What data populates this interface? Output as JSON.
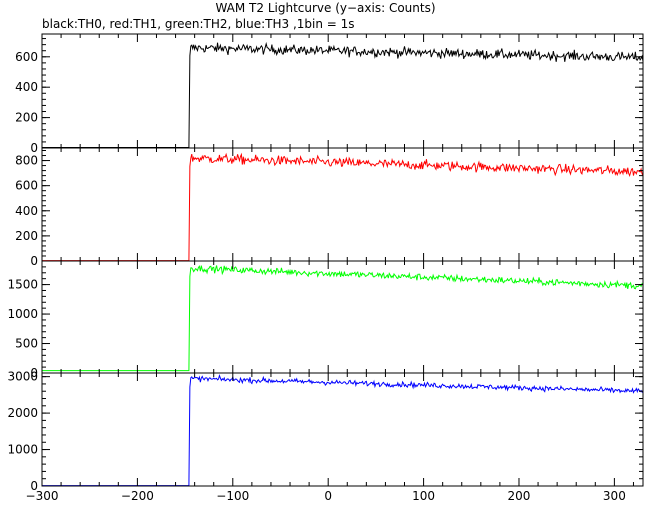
{
  "chart_data": {
    "title": "WAM T2 Lightcurve (y−axis: Counts)",
    "subtitle": "black:TH0, red:TH1, green:TH2, blue:TH3 ,1bin = 1s",
    "type": "line",
    "xlim": [
      -300,
      330
    ],
    "x_ticks": [
      -300,
      -200,
      -100,
      0,
      100,
      200,
      300
    ],
    "x_tick_labels": [
      "−300",
      "−200",
      "−100",
      "0",
      "100",
      "200",
      "300"
    ],
    "trigger_x": -145,
    "panels": [
      {
        "name": "TH0",
        "color": "#000000",
        "ylim": [
          0,
          750
        ],
        "yticks": [
          0,
          200,
          400,
          600
        ],
        "background": 3,
        "peak": 660,
        "end": 595,
        "noise": 25
      },
      {
        "name": "TH1",
        "color": "#ff0000",
        "ylim": [
          0,
          900
        ],
        "yticks": [
          0,
          200,
          400,
          600,
          800
        ],
        "background": 3,
        "peak": 820,
        "end": 710,
        "noise": 30
      },
      {
        "name": "TH2",
        "color": "#00ff00",
        "ylim": [
          0,
          1900
        ],
        "yticks": [
          0,
          500,
          1000,
          1500
        ],
        "background": 40,
        "peak": 1780,
        "end": 1480,
        "noise": 45
      },
      {
        "name": "TH3",
        "color": "#0000ff",
        "ylim": [
          0,
          3100
        ],
        "yticks": [
          0,
          1000,
          2000,
          3000
        ],
        "background": 10,
        "peak": 2950,
        "end": 2600,
        "noise": 55
      }
    ]
  }
}
